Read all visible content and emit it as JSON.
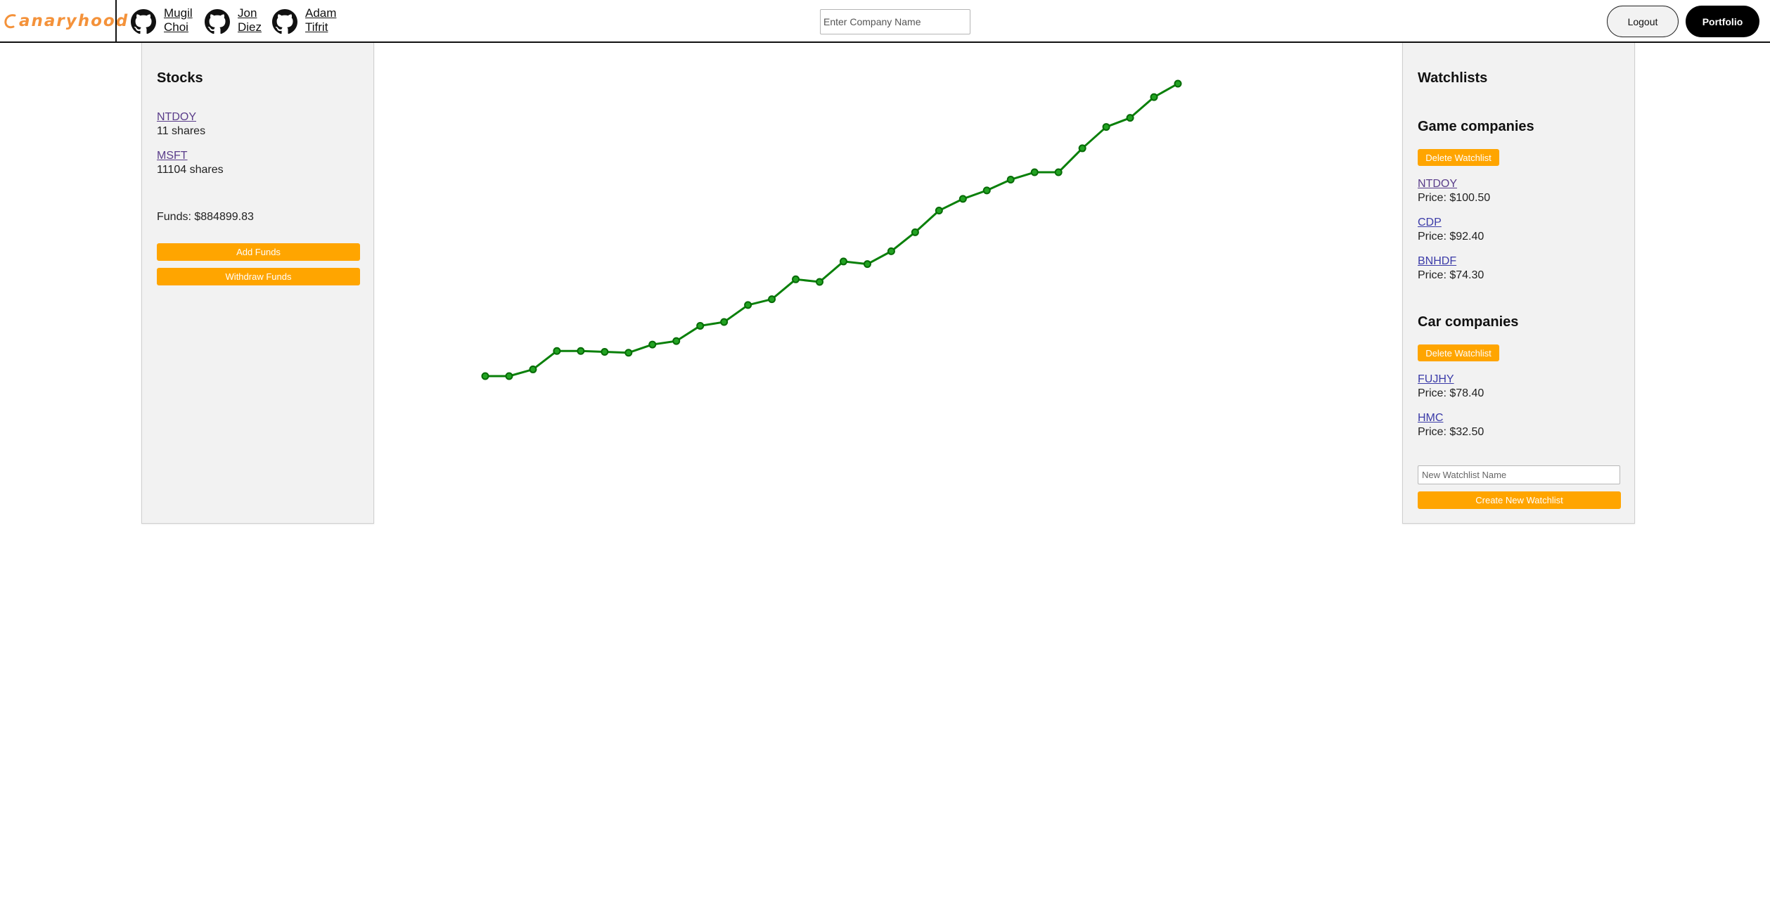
{
  "header": {
    "logo_text": "anaryhood",
    "developers": [
      {
        "first": "Mugil",
        "last": "Choi"
      },
      {
        "first": "Jon",
        "last": "Diez"
      },
      {
        "first": "Adam",
        "last": "Tifrit"
      }
    ],
    "search_placeholder": "Enter Company Name",
    "logout_label": "Logout",
    "portfolio_label": "Portfolio"
  },
  "stocks_panel": {
    "title": "Stocks",
    "holdings": [
      {
        "ticker": "NTDOY",
        "shares": "11 shares"
      },
      {
        "ticker": "MSFT",
        "shares": "11104 shares"
      }
    ],
    "funds": "Funds: $884899.83",
    "add_funds_label": "Add Funds",
    "withdraw_funds_label": "Withdraw Funds"
  },
  "watchlists_panel": {
    "title": "Watchlists",
    "watchlists": [
      {
        "name": "Game companies",
        "delete_label": "Delete Watchlist",
        "stocks": [
          {
            "ticker": "NTDOY",
            "price": "Price: $100.50"
          },
          {
            "ticker": "CDP",
            "price": "Price: $92.40"
          },
          {
            "ticker": "BNHDF",
            "price": "Price: $74.30"
          }
        ]
      },
      {
        "name": "Car companies",
        "delete_label": "Delete Watchlist",
        "stocks": [
          {
            "ticker": "FUJHY",
            "price": "Price: $78.40"
          },
          {
            "ticker": "HMC",
            "price": "Price: $32.50"
          }
        ]
      }
    ],
    "new_watchlist_placeholder": "New Watchlist Name",
    "create_label": "Create New Watchlist"
  },
  "chart_data": {
    "type": "line",
    "x": [
      1,
      2,
      3,
      4,
      5,
      6,
      7,
      8,
      9,
      10,
      11,
      12,
      13,
      14,
      15,
      16,
      17,
      18,
      19,
      20,
      21,
      22,
      23,
      24,
      25,
      26,
      27,
      28,
      29,
      30
    ],
    "series": [
      {
        "values": [
          0.0,
          0.0,
          2.3,
          8.6,
          8.6,
          8.3,
          8.0,
          10.8,
          12.0,
          17.2,
          18.5,
          24.3,
          26.3,
          33.1,
          32.2,
          39.2,
          38.3,
          42.7,
          49.2,
          56.6,
          60.6,
          63.5,
          67.2,
          69.7,
          69.7,
          77.9,
          85.2,
          88.3,
          95.4,
          100.0
        ],
        "color": "#0a800a"
      }
    ],
    "ylim": [
      0,
      100
    ],
    "grid": false,
    "axes_visible": false,
    "legend": "none"
  },
  "colors": {
    "accent": "#ffa500",
    "logo": "#f4923a",
    "line": "#0a800a",
    "panel_bg": "#f2f2f2"
  }
}
